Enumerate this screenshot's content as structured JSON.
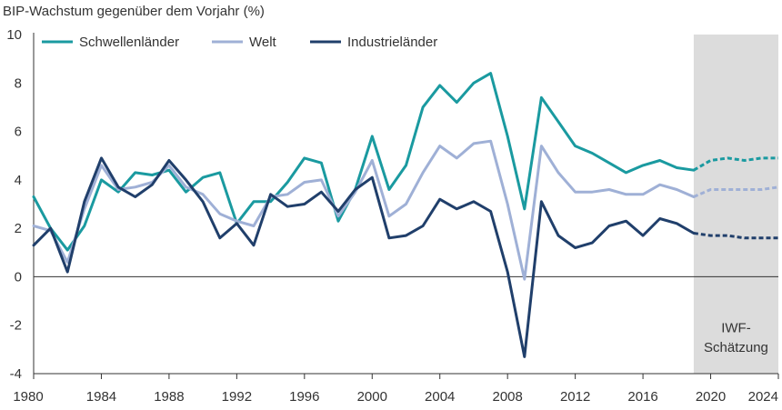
{
  "chart_data": {
    "type": "line",
    "title": "BIP-Wachstum gegenüber dem Vorjahr (%)",
    "xlabel": "",
    "ylabel": "",
    "xlim": [
      1980,
      2024
    ],
    "ylim": [
      -4,
      10
    ],
    "yticks": [
      -4,
      -2,
      0,
      2,
      4,
      6,
      8,
      10
    ],
    "xticks": [
      1980,
      1984,
      1988,
      1992,
      1996,
      2000,
      2004,
      2008,
      2012,
      2016,
      2020,
      2024
    ],
    "grid": false,
    "legend_position": "top-left",
    "forecast": {
      "start": 2019,
      "end": 2024,
      "label_line1": "IWF-",
      "label_line2": "Schätzung",
      "shade_color": "#dcdcdc"
    },
    "series": [
      {
        "name": "Schwellenländer",
        "color": "#1a9aa0",
        "x": [
          1980,
          1981,
          1982,
          1983,
          1984,
          1985,
          1986,
          1987,
          1988,
          1989,
          1990,
          1991,
          1992,
          1993,
          1994,
          1995,
          1996,
          1997,
          1998,
          1999,
          2000,
          2001,
          2002,
          2003,
          2004,
          2005,
          2006,
          2007,
          2008,
          2009,
          2010,
          2011,
          2012,
          2013,
          2014,
          2015,
          2016,
          2017,
          2018,
          2019,
          2020,
          2021,
          2022,
          2023,
          2024
        ],
        "values": [
          3.3,
          2.0,
          1.1,
          2.1,
          4.0,
          3.5,
          4.3,
          4.2,
          4.4,
          3.5,
          4.1,
          4.3,
          2.2,
          3.1,
          3.1,
          3.9,
          4.9,
          4.7,
          2.3,
          3.6,
          5.8,
          3.6,
          4.6,
          7.0,
          7.9,
          7.2,
          8.0,
          8.4,
          5.8,
          2.8,
          7.4,
          6.4,
          5.4,
          5.1,
          4.7,
          4.3,
          4.6,
          4.8,
          4.5,
          4.4,
          4.8,
          4.9,
          4.8,
          4.9,
          4.9
        ]
      },
      {
        "name": "Welt",
        "color": "#9fb0d6",
        "x": [
          1980,
          1981,
          1982,
          1983,
          1984,
          1985,
          1986,
          1987,
          1988,
          1989,
          1990,
          1991,
          1992,
          1993,
          1994,
          1995,
          1996,
          1997,
          1998,
          1999,
          2000,
          2001,
          2002,
          2003,
          2004,
          2005,
          2006,
          2007,
          2008,
          2009,
          2010,
          2011,
          2012,
          2013,
          2014,
          2015,
          2016,
          2017,
          2018,
          2019,
          2020,
          2021,
          2022,
          2023,
          2024
        ],
        "values": [
          2.1,
          1.9,
          0.6,
          2.8,
          4.6,
          3.6,
          3.7,
          3.9,
          4.6,
          3.7,
          3.4,
          2.6,
          2.3,
          2.1,
          3.3,
          3.4,
          3.9,
          4.0,
          2.5,
          3.5,
          4.8,
          2.5,
          3.0,
          4.3,
          5.4,
          4.9,
          5.5,
          5.6,
          3.0,
          -0.1,
          5.4,
          4.3,
          3.5,
          3.5,
          3.6,
          3.4,
          3.4,
          3.8,
          3.6,
          3.3,
          3.6,
          3.6,
          3.6,
          3.6,
          3.7
        ]
      },
      {
        "name": "Industrieländer",
        "color": "#203f6b",
        "x": [
          1980,
          1981,
          1982,
          1983,
          1984,
          1985,
          1986,
          1987,
          1988,
          1989,
          1990,
          1991,
          1992,
          1993,
          1994,
          1995,
          1996,
          1997,
          1998,
          1999,
          2000,
          2001,
          2002,
          2003,
          2004,
          2005,
          2006,
          2007,
          2008,
          2009,
          2010,
          2011,
          2012,
          2013,
          2014,
          2015,
          2016,
          2017,
          2018,
          2019,
          2020,
          2021,
          2022,
          2023,
          2024
        ],
        "values": [
          1.3,
          2.0,
          0.2,
          3.1,
          4.9,
          3.7,
          3.3,
          3.8,
          4.8,
          4.0,
          3.1,
          1.6,
          2.2,
          1.3,
          3.4,
          2.9,
          3.0,
          3.5,
          2.7,
          3.6,
          4.1,
          1.6,
          1.7,
          2.1,
          3.2,
          2.8,
          3.1,
          2.7,
          0.2,
          -3.3,
          3.1,
          1.7,
          1.2,
          1.4,
          2.1,
          2.3,
          1.7,
          2.4,
          2.2,
          1.8,
          1.7,
          1.7,
          1.6,
          1.6,
          1.6
        ]
      }
    ]
  }
}
